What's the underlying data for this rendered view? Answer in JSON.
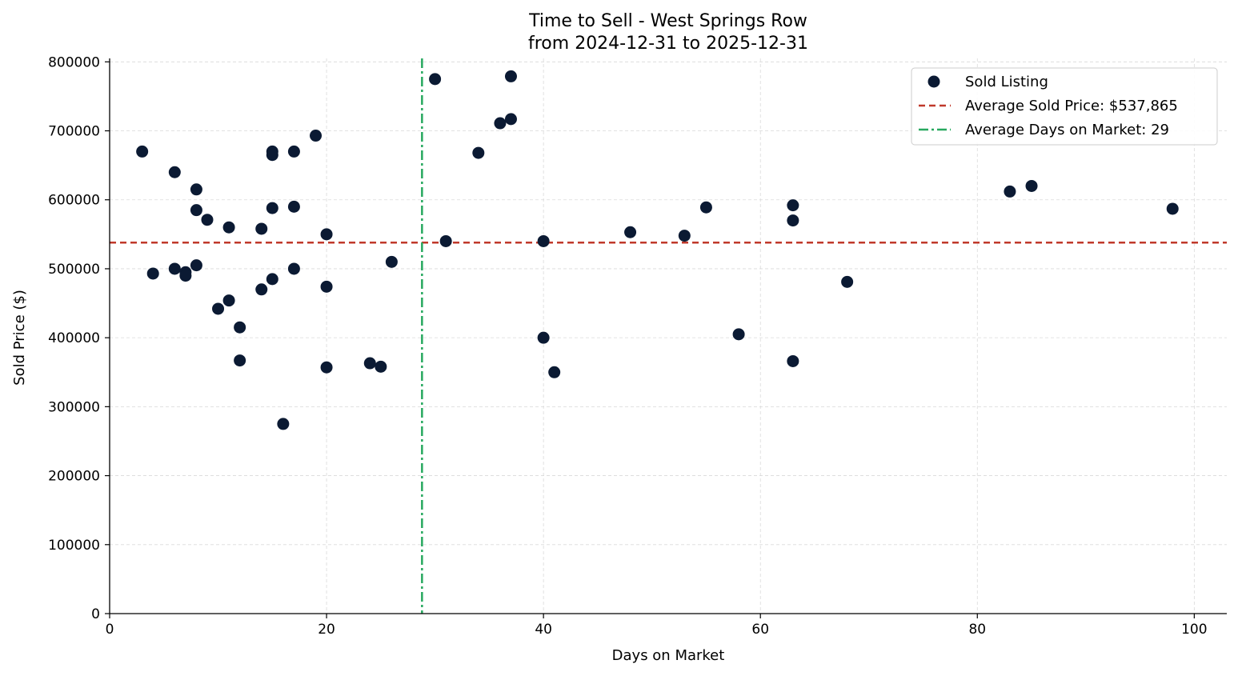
{
  "chart_data": {
    "type": "scatter",
    "title_line1": "Time to Sell - West Springs Row",
    "title_line2": "from 2024-12-31 to 2025-12-31",
    "xlabel": "Days on Market",
    "ylabel": "Sold Price ($)",
    "xlim": [
      0,
      103
    ],
    "ylim": [
      0,
      805000
    ],
    "x_ticks": [
      0,
      20,
      40,
      60,
      80,
      100
    ],
    "y_ticks": [
      0,
      100000,
      200000,
      300000,
      400000,
      500000,
      600000,
      700000,
      800000
    ],
    "grid": true,
    "legend_position": "top-right",
    "legend": {
      "scatter_label": "Sold Listing",
      "avg_price_label": "Average Sold Price: $537,865",
      "avg_days_label": "Average Days on Market: 29"
    },
    "avg_price": 537865,
    "avg_days": 28.8,
    "colors": {
      "point": "#0b1a33",
      "avg_price_line": "#c0392b",
      "avg_days_line": "#27a85f",
      "grid": "#d9d9d9",
      "axis": "#000000"
    },
    "series": [
      {
        "name": "Sold Listing",
        "points": [
          {
            "x": 3,
            "y": 670000
          },
          {
            "x": 4,
            "y": 493000
          },
          {
            "x": 6,
            "y": 640000
          },
          {
            "x": 6,
            "y": 500000
          },
          {
            "x": 7,
            "y": 495000
          },
          {
            "x": 7,
            "y": 490000
          },
          {
            "x": 8,
            "y": 615000
          },
          {
            "x": 8,
            "y": 585000
          },
          {
            "x": 8,
            "y": 505000
          },
          {
            "x": 9,
            "y": 571000
          },
          {
            "x": 10,
            "y": 442000
          },
          {
            "x": 11,
            "y": 560000
          },
          {
            "x": 11,
            "y": 454000
          },
          {
            "x": 12,
            "y": 415000
          },
          {
            "x": 12,
            "y": 367000
          },
          {
            "x": 14,
            "y": 558000
          },
          {
            "x": 14,
            "y": 470000
          },
          {
            "x": 15,
            "y": 670000
          },
          {
            "x": 15,
            "y": 665000
          },
          {
            "x": 15,
            "y": 588000
          },
          {
            "x": 15,
            "y": 485000
          },
          {
            "x": 16,
            "y": 275000
          },
          {
            "x": 17,
            "y": 670000
          },
          {
            "x": 17,
            "y": 590000
          },
          {
            "x": 17,
            "y": 500000
          },
          {
            "x": 19,
            "y": 693000
          },
          {
            "x": 20,
            "y": 550000
          },
          {
            "x": 20,
            "y": 474000
          },
          {
            "x": 20,
            "y": 357000
          },
          {
            "x": 24,
            "y": 363000
          },
          {
            "x": 25,
            "y": 358000
          },
          {
            "x": 26,
            "y": 510000
          },
          {
            "x": 30,
            "y": 775000
          },
          {
            "x": 31,
            "y": 540000
          },
          {
            "x": 34,
            "y": 668000
          },
          {
            "x": 36,
            "y": 711000
          },
          {
            "x": 37,
            "y": 779000
          },
          {
            "x": 37,
            "y": 717000
          },
          {
            "x": 40,
            "y": 540000
          },
          {
            "x": 40,
            "y": 400000
          },
          {
            "x": 41,
            "y": 350000
          },
          {
            "x": 48,
            "y": 553000
          },
          {
            "x": 53,
            "y": 548000
          },
          {
            "x": 55,
            "y": 589000
          },
          {
            "x": 58,
            "y": 405000
          },
          {
            "x": 63,
            "y": 592000
          },
          {
            "x": 63,
            "y": 570000
          },
          {
            "x": 63,
            "y": 366000
          },
          {
            "x": 68,
            "y": 481000
          },
          {
            "x": 83,
            "y": 612000
          },
          {
            "x": 85,
            "y": 620000
          },
          {
            "x": 98,
            "y": 587000
          }
        ]
      }
    ]
  }
}
